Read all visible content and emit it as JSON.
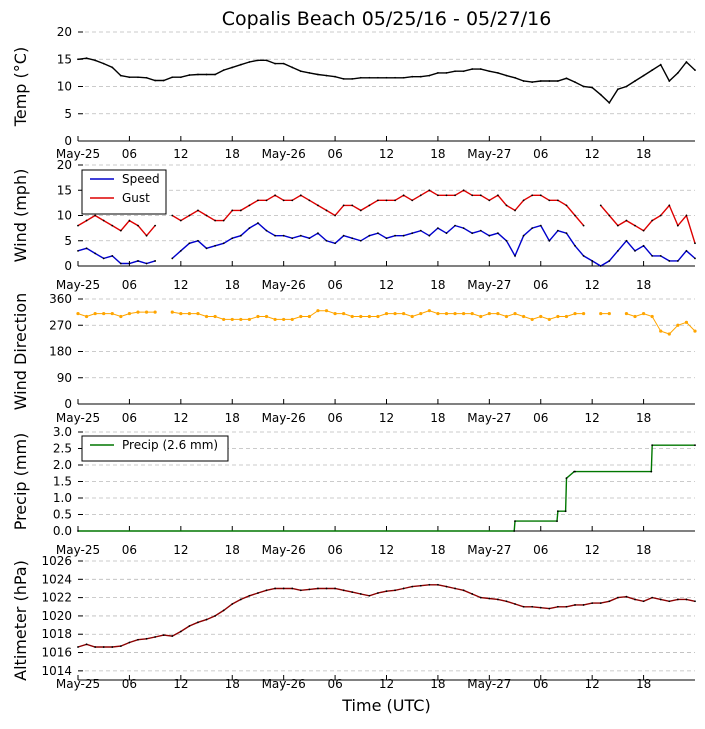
{
  "chart_data": [
    {
      "type": "line",
      "title": "Copalis Beach 05/25/16 - 05/27/16",
      "ylabel": "Temp ($^\\circ$C)",
      "ylabel_display": "Temp (°C)",
      "ylim": [
        0,
        20
      ],
      "yticks": [
        "0",
        "5",
        "10",
        "15",
        "20"
      ],
      "xticks": [
        "May-25",
        "06",
        "12",
        "18",
        "May-26",
        "06",
        "12",
        "18",
        "May-27",
        "06",
        "12",
        "18"
      ],
      "x_unit": "hours since May-25 00 UTC",
      "series": [
        {
          "color": "#000000",
          "x": [
            0,
            1,
            2,
            3,
            4,
            5,
            6,
            7,
            8,
            9,
            10,
            11,
            12,
            13,
            14,
            15,
            16,
            17,
            18,
            19,
            20,
            21,
            22,
            23,
            24,
            25,
            26,
            27,
            28,
            29,
            30,
            31,
            32,
            33,
            34,
            35,
            36,
            37,
            38,
            39,
            40,
            41,
            42,
            43,
            44,
            45,
            46,
            47,
            48,
            49,
            50,
            51,
            52,
            53,
            54,
            55,
            56,
            57,
            58,
            59,
            60,
            61,
            62,
            63,
            64,
            65,
            66,
            67,
            68,
            69,
            70,
            71,
            72
          ],
          "values": [
            15.0,
            15.2,
            14.8,
            14.2,
            13.5,
            12.0,
            11.7,
            11.7,
            11.6,
            11.1,
            11.1,
            11.7,
            11.7,
            12.1,
            12.2,
            12.2,
            12.2,
            13.0,
            13.5,
            14.0,
            14.5,
            14.8,
            14.8,
            14.2,
            14.2,
            13.5,
            12.8,
            12.5,
            12.2,
            12.0,
            11.8,
            11.4,
            11.4,
            11.6,
            11.6,
            11.6,
            11.6,
            11.6,
            11.6,
            11.8,
            11.8,
            12.0,
            12.5,
            12.5,
            12.8,
            12.8,
            13.2,
            13.2,
            12.8,
            12.5,
            12.0,
            11.6,
            11.0,
            10.8,
            11.0,
            11.0,
            11.0,
            11.5,
            10.8,
            10.0,
            9.8,
            8.5,
            7.0,
            9.5,
            10.0,
            11.0,
            12.0,
            13.0,
            14.0,
            11.0,
            12.5,
            14.5,
            13.0
          ]
        }
      ]
    },
    {
      "type": "line",
      "ylabel": "Wind (mph)",
      "ylim": [
        0,
        20
      ],
      "yticks": [
        "0",
        "5",
        "10",
        "15",
        "20"
      ],
      "xticks": [
        "May-25",
        "06",
        "12",
        "18",
        "May-26",
        "06",
        "12",
        "18",
        "May-27",
        "06",
        "12",
        "18"
      ],
      "legend": "top-left",
      "series": [
        {
          "name": "Speed",
          "color": "#0000cc",
          "x": [
            0,
            1,
            2,
            3,
            4,
            5,
            6,
            7,
            8,
            9,
            10,
            11,
            12,
            13,
            14,
            15,
            16,
            17,
            18,
            19,
            20,
            21,
            22,
            23,
            24,
            25,
            26,
            27,
            28,
            29,
            30,
            31,
            32,
            33,
            34,
            35,
            36,
            37,
            38,
            39,
            40,
            41,
            42,
            43,
            44,
            45,
            46,
            47,
            48,
            49,
            50,
            51,
            52,
            53,
            54,
            55,
            56,
            57,
            58,
            59,
            60,
            61,
            62,
            63,
            64,
            65,
            66,
            67,
            68,
            69,
            70,
            71,
            72
          ],
          "values": [
            3,
            3.5,
            2.5,
            1.5,
            2,
            0.5,
            0.5,
            1,
            0.5,
            1,
            null,
            1.5,
            3,
            4.5,
            5,
            3.5,
            4,
            4.5,
            5.5,
            6,
            7.5,
            8.5,
            7,
            6,
            6,
            5.5,
            6,
            5.5,
            6.5,
            5,
            4.5,
            6,
            5.5,
            5,
            6,
            6.5,
            5.5,
            6,
            6,
            6.5,
            7,
            6,
            7.5,
            6.5,
            8,
            7.5,
            6.5,
            7,
            6,
            6.5,
            5,
            2,
            6,
            7.5,
            8,
            5,
            7,
            6.5,
            4,
            2,
            1,
            0,
            1,
            3,
            5,
            3,
            4,
            2,
            2,
            1,
            1,
            3,
            1.5
          ]
        },
        {
          "name": "Gust",
          "color": "#dd0000",
          "x": [
            0,
            1,
            2,
            3,
            4,
            5,
            6,
            7,
            8,
            9,
            10,
            11,
            12,
            13,
            14,
            15,
            16,
            17,
            18,
            19,
            20,
            21,
            22,
            23,
            24,
            25,
            26,
            27,
            28,
            29,
            30,
            31,
            32,
            33,
            34,
            35,
            36,
            37,
            38,
            39,
            40,
            41,
            42,
            43,
            44,
            45,
            46,
            47,
            48,
            49,
            50,
            51,
            52,
            53,
            54,
            55,
            56,
            57,
            58,
            59,
            60,
            61,
            62,
            63,
            64,
            65,
            66,
            67,
            68,
            69,
            70,
            71,
            72
          ],
          "values": [
            8,
            9,
            10,
            9,
            8,
            7,
            9,
            8,
            6,
            8,
            null,
            10,
            9,
            10,
            11,
            10,
            9,
            9,
            11,
            11,
            12,
            13,
            13,
            14,
            13,
            13,
            14,
            13,
            12,
            11,
            10,
            12,
            12,
            11,
            12,
            13,
            13,
            13,
            14,
            13,
            14,
            15,
            14,
            14,
            14,
            15,
            14,
            14,
            13,
            14,
            12,
            11,
            13,
            14,
            14,
            13,
            13,
            12,
            10,
            8,
            null,
            12,
            10,
            8,
            9,
            8,
            7,
            9,
            10,
            12,
            8,
            10,
            4.5
          ]
        }
      ]
    },
    {
      "type": "scatter",
      "ylabel": "Wind Direction",
      "ylim": [
        0,
        360
      ],
      "yticks": [
        "0",
        "90",
        "180",
        "270",
        "360"
      ],
      "xticks": [
        "May-25",
        "06",
        "12",
        "18",
        "May-26",
        "06",
        "12",
        "18",
        "May-27",
        "06",
        "12",
        "18"
      ],
      "series": [
        {
          "color": "#ffa500",
          "x": [
            0,
            1,
            2,
            3,
            4,
            5,
            6,
            7,
            8,
            9,
            10,
            11,
            12,
            13,
            14,
            15,
            16,
            17,
            18,
            19,
            20,
            21,
            22,
            23,
            24,
            25,
            26,
            27,
            28,
            29,
            30,
            31,
            32,
            33,
            34,
            35,
            36,
            37,
            38,
            39,
            40,
            41,
            42,
            43,
            44,
            45,
            46,
            47,
            48,
            49,
            50,
            51,
            52,
            53,
            54,
            55,
            56,
            57,
            58,
            59,
            60,
            61,
            62,
            63,
            64,
            65,
            66,
            67,
            68,
            69,
            70,
            71,
            72
          ],
          "values": [
            310,
            300,
            310,
            310,
            310,
            300,
            310,
            315,
            315,
            315,
            null,
            315,
            310,
            310,
            310,
            300,
            300,
            290,
            290,
            290,
            290,
            300,
            300,
            290,
            290,
            290,
            300,
            300,
            320,
            320,
            310,
            310,
            300,
            300,
            300,
            300,
            310,
            310,
            310,
            300,
            310,
            320,
            310,
            310,
            310,
            310,
            310,
            300,
            310,
            310,
            300,
            310,
            300,
            290,
            300,
            290,
            300,
            300,
            310,
            310,
            null,
            310,
            310,
            null,
            310,
            300,
            310,
            300,
            250,
            240,
            270,
            280,
            250
          ]
        }
      ]
    },
    {
      "type": "line",
      "ylabel": "Precip (mm)",
      "ylim": [
        0,
        3.0
      ],
      "yticks": [
        "0.0",
        "0.5",
        "1.0",
        "1.5",
        "2.0",
        "2.5",
        "3.0"
      ],
      "xticks": [
        "May-25",
        "06",
        "12",
        "18",
        "May-26",
        "06",
        "12",
        "18",
        "May-27",
        "06",
        "12",
        "18"
      ],
      "legend": "top-left",
      "series": [
        {
          "name": "Precip (2.6 mm)",
          "color": "#007700",
          "x": [
            0,
            50.9,
            51,
            55.9,
            56,
            56.9,
            57,
            57.9,
            58,
            66.9,
            67,
            72
          ],
          "values": [
            0,
            0,
            0.3,
            0.3,
            0.6,
            0.6,
            1.6,
            1.8,
            1.8,
            1.8,
            2.6,
            2.6
          ]
        }
      ]
    },
    {
      "type": "line",
      "ylabel": "Altimeter (hPa)",
      "xlabel": "Time (UTC)",
      "ylim": [
        1013,
        1026
      ],
      "yticks": [
        "1014",
        "1016",
        "1018",
        "1020",
        "1022",
        "1024",
        "1026"
      ],
      "xticks": [
        "May-25",
        "06",
        "12",
        "18",
        "May-26",
        "06",
        "12",
        "18",
        "May-27",
        "06",
        "12",
        "18"
      ],
      "series": [
        {
          "color": "#8b0000",
          "x": [
            0,
            1,
            2,
            3,
            4,
            5,
            6,
            7,
            8,
            9,
            10,
            11,
            12,
            13,
            14,
            15,
            16,
            17,
            18,
            19,
            20,
            21,
            22,
            23,
            24,
            25,
            26,
            27,
            28,
            29,
            30,
            31,
            32,
            33,
            34,
            35,
            36,
            37,
            38,
            39,
            40,
            41,
            42,
            43,
            44,
            45,
            46,
            47,
            48,
            49,
            50,
            51,
            52,
            53,
            54,
            55,
            56,
            57,
            58,
            59,
            60,
            61,
            62,
            63,
            64,
            65,
            66,
            67,
            68,
            69,
            70,
            71,
            72
          ],
          "values": [
            1016.6,
            1016.9,
            1016.6,
            1016.6,
            1016.6,
            1016.7,
            1017.1,
            1017.4,
            1017.5,
            1017.7,
            1017.9,
            1017.8,
            1018.3,
            1018.9,
            1019.3,
            1019.6,
            1020.0,
            1020.6,
            1021.3,
            1021.8,
            1022.2,
            1022.5,
            1022.8,
            1023.0,
            1023.0,
            1023.0,
            1022.8,
            1022.9,
            1023.0,
            1023.0,
            1023.0,
            1022.8,
            1022.6,
            1022.4,
            1022.2,
            1022.5,
            1022.7,
            1022.8,
            1023.0,
            1023.2,
            1023.3,
            1023.4,
            1023.4,
            1023.2,
            1023.0,
            1022.8,
            1022.4,
            1022.0,
            1021.9,
            1021.8,
            1021.6,
            1021.3,
            1021.0,
            1021.0,
            1020.9,
            1020.8,
            1021.0,
            1021.0,
            1021.2,
            1021.2,
            1021.4,
            1021.4,
            1021.6,
            1022.0,
            1022.1,
            1021.8,
            1021.6,
            1022.0,
            1021.8,
            1021.6,
            1021.8,
            1021.8,
            1021.6
          ]
        }
      ]
    }
  ]
}
